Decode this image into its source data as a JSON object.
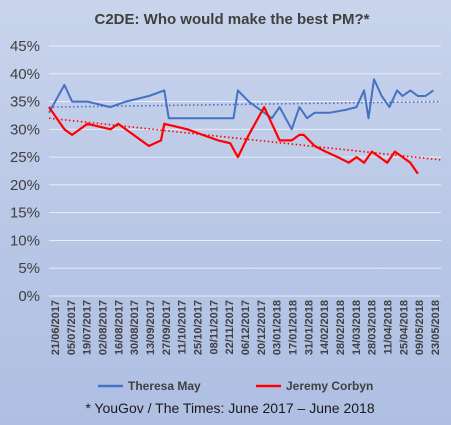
{
  "chart_data": {
    "type": "line",
    "title": "C2DE: Who would make the best PM?*",
    "ylim": [
      0,
      45
    ],
    "y_ticks": [
      "0%",
      "5%",
      "10%",
      "15%",
      "20%",
      "25%",
      "30%",
      "35%",
      "40%",
      "45%"
    ],
    "y_tick_values": [
      0,
      5,
      10,
      15,
      20,
      25,
      30,
      35,
      40,
      45
    ],
    "x_tick_labels": [
      "21/06/2017",
      "05/07/2017",
      "19/07/2017",
      "02/08/2017",
      "16/08/2017",
      "30/08/2017",
      "13/09/2017",
      "27/09/2017",
      "11/10/2017",
      "25/10/2017",
      "08/11/2017",
      "22/11/2017",
      "06/12/2017",
      "20/12/2017",
      "03/01/2018",
      "17/01/2018",
      "31/01/2018",
      "14/02/2018",
      "28/02/2018",
      "14/03/2018",
      "28/03/2018",
      "11/04/2018",
      "25/04/2018",
      "09/05/2018",
      "23/05/2018"
    ],
    "x_start": "2017-06-21",
    "x_end": "2018-06-13",
    "grid": true,
    "legend_position": "bottom",
    "footnote": "* YouGov / The Times: June 2017 – June 2018",
    "series": [
      {
        "name": "Theresa May",
        "color": "#4472c4",
        "points": [
          [
            "2017-06-21",
            33
          ],
          [
            "2017-07-05",
            38
          ],
          [
            "2017-07-12",
            35
          ],
          [
            "2017-07-26",
            35
          ],
          [
            "2017-08-16",
            34
          ],
          [
            "2017-08-30",
            35
          ],
          [
            "2017-09-20",
            36
          ],
          [
            "2017-10-04",
            37
          ],
          [
            "2017-10-08",
            32
          ],
          [
            "2017-10-25",
            32
          ],
          [
            "2017-11-08",
            32
          ],
          [
            "2017-11-22",
            32
          ],
          [
            "2017-12-06",
            32
          ],
          [
            "2017-12-10",
            37
          ],
          [
            "2017-12-20",
            35
          ],
          [
            "2018-01-03",
            33
          ],
          [
            "2018-01-10",
            32
          ],
          [
            "2018-01-17",
            34
          ],
          [
            "2018-01-28",
            30
          ],
          [
            "2018-02-04",
            34
          ],
          [
            "2018-02-11",
            32
          ],
          [
            "2018-02-18",
            33
          ],
          [
            "2018-03-04",
            33
          ],
          [
            "2018-03-18",
            33.5
          ],
          [
            "2018-03-28",
            34
          ],
          [
            "2018-04-04",
            37
          ],
          [
            "2018-04-08",
            32
          ],
          [
            "2018-04-13",
            39
          ],
          [
            "2018-04-20",
            36
          ],
          [
            "2018-04-27",
            34
          ],
          [
            "2018-05-04",
            37
          ],
          [
            "2018-05-09",
            36
          ],
          [
            "2018-05-16",
            37
          ],
          [
            "2018-05-23",
            36
          ],
          [
            "2018-05-30",
            36
          ],
          [
            "2018-06-06",
            37
          ]
        ],
        "trend": [
          34.0,
          35.0
        ]
      },
      {
        "name": "Jeremy Corbyn",
        "color": "#ff0000",
        "points": [
          [
            "2017-06-21",
            34
          ],
          [
            "2017-07-05",
            30
          ],
          [
            "2017-07-12",
            29
          ],
          [
            "2017-07-26",
            31
          ],
          [
            "2017-08-16",
            30
          ],
          [
            "2017-08-23",
            31
          ],
          [
            "2017-09-20",
            27
          ],
          [
            "2017-10-01",
            28
          ],
          [
            "2017-10-04",
            31
          ],
          [
            "2017-10-25",
            30
          ],
          [
            "2017-11-08",
            29
          ],
          [
            "2017-11-22",
            28
          ],
          [
            "2017-12-03",
            27.5
          ],
          [
            "2017-12-10",
            25
          ],
          [
            "2017-12-20",
            29
          ],
          [
            "2018-01-03",
            34
          ],
          [
            "2018-01-10",
            31
          ],
          [
            "2018-01-17",
            28
          ],
          [
            "2018-01-28",
            28
          ],
          [
            "2018-02-04",
            29
          ],
          [
            "2018-02-08",
            29
          ],
          [
            "2018-02-18",
            27
          ],
          [
            "2018-02-28",
            26
          ],
          [
            "2018-03-11",
            25
          ],
          [
            "2018-03-21",
            24
          ],
          [
            "2018-03-28",
            25
          ],
          [
            "2018-04-04",
            24
          ],
          [
            "2018-04-11",
            26
          ],
          [
            "2018-04-18",
            25
          ],
          [
            "2018-04-25",
            24
          ],
          [
            "2018-05-02",
            26
          ],
          [
            "2018-05-09",
            25
          ],
          [
            "2018-05-16",
            24
          ],
          [
            "2018-05-23",
            22
          ]
        ],
        "trend": [
          32.0,
          24.5
        ]
      }
    ]
  }
}
